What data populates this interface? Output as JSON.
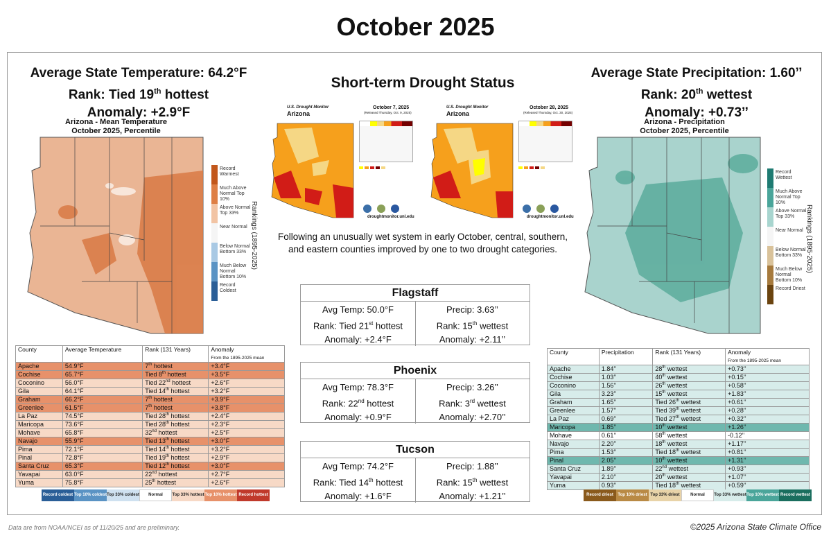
{
  "title": "October 2025",
  "temperature": {
    "line1": "Average State Temperature: 64.2°F",
    "rank_prefix": "Rank: Tied 19",
    "rank_sup": "th",
    "rank_suffix": " hottest",
    "anomaly": "Anomaly: +2.9°F",
    "map_title1": "Arizona - Mean Temperature",
    "map_title2": "October 2025, Percentile",
    "rankings_label": "Rankings (1895-2025)",
    "legend": [
      {
        "label": "Record Warmest",
        "color": "#c2571b"
      },
      {
        "label": "Much Above Normal Top 10%",
        "color": "#de7f45"
      },
      {
        "label": "Above Normal Top 33%",
        "color": "#f2c4a4"
      },
      {
        "label": "Near Normal",
        "color": "#f5f5f5"
      },
      {
        "label": "Below Normal Bottom 33%",
        "color": "#a9c9e4"
      },
      {
        "label": "Much Below Normal Bottom 10%",
        "color": "#5a93c4"
      },
      {
        "label": "Record Coldest",
        "color": "#2a5e97"
      }
    ],
    "table_headers": [
      "County",
      "Average Temperature",
      "Rank (131 Years)",
      "Anomaly",
      "From the 1895-2025 mean"
    ],
    "rows": [
      {
        "county": "Apache",
        "val": "54.9°F",
        "rank_pre": "7",
        "rank_sup": "th",
        "rank_post": " hottest",
        "anom": "+3.4°F",
        "color": "#e7916a"
      },
      {
        "county": "Cochise",
        "val": "65.7°F",
        "rank_pre": "Tied 8",
        "rank_sup": "th",
        "rank_post": " hottest",
        "anom": "+3.5°F",
        "color": "#e7916a"
      },
      {
        "county": "Coconino",
        "val": "56.0°F",
        "rank_pre": "Tied 22",
        "rank_sup": "nd",
        "rank_post": " hottest",
        "anom": "+2.6°F",
        "color": "#f7d9c6"
      },
      {
        "county": "Gila",
        "val": "64.1°F",
        "rank_pre": "Tied 14",
        "rank_sup": "th",
        "rank_post": " hottest",
        "anom": "+3.2°F",
        "color": "#f7d9c6"
      },
      {
        "county": "Graham",
        "val": "66.2°F",
        "rank_pre": "7",
        "rank_sup": "th",
        "rank_post": " hottest",
        "anom": "+3.9°F",
        "color": "#e7916a"
      },
      {
        "county": "Greenlee",
        "val": "61.5°F",
        "rank_pre": "7",
        "rank_sup": "th",
        "rank_post": " hottest",
        "anom": "+3.8°F",
        "color": "#e7916a"
      },
      {
        "county": "La Paz",
        "val": "74.5°F",
        "rank_pre": "Tied 28",
        "rank_sup": "th",
        "rank_post": " hottest",
        "anom": "+2.4°F",
        "color": "#f7d9c6"
      },
      {
        "county": "Maricopa",
        "val": "73.6°F",
        "rank_pre": "Tied 28",
        "rank_sup": "th",
        "rank_post": " hottest",
        "anom": "+2.3°F",
        "color": "#f7d9c6"
      },
      {
        "county": "Mohave",
        "val": "65.8°F",
        "rank_pre": "32",
        "rank_sup": "nd",
        "rank_post": " hottest",
        "anom": "+2.5°F",
        "color": "#f7d9c6"
      },
      {
        "county": "Navajo",
        "val": "55.9°F",
        "rank_pre": "Tied 13",
        "rank_sup": "th",
        "rank_post": " hottest",
        "anom": "+3.0°F",
        "color": "#e7916a"
      },
      {
        "county": "Pima",
        "val": "72.1°F",
        "rank_pre": "Tied 14",
        "rank_sup": "th",
        "rank_post": " hottest",
        "anom": "+3.2°F",
        "color": "#f7d9c6"
      },
      {
        "county": "Pinal",
        "val": "72.8°F",
        "rank_pre": "Tied 19",
        "rank_sup": "th",
        "rank_post": " hottest",
        "anom": "+2.9°F",
        "color": "#f7d9c6"
      },
      {
        "county": "Santa Cruz",
        "val": "65.3°F",
        "rank_pre": "Tied 12",
        "rank_sup": "th",
        "rank_post": " hottest",
        "anom": "+3.0°F",
        "color": "#e7916a"
      },
      {
        "county": "Yavapai",
        "val": "63.0°F",
        "rank_pre": "22",
        "rank_sup": "nd",
        "rank_post": " hottest",
        "anom": "+2.7°F",
        "color": "#f7d9c6"
      },
      {
        "county": "Yuma",
        "val": "75.8°F",
        "rank_pre": "25",
        "rank_sup": "th",
        "rank_post": " hottest",
        "anom": "+2.6°F",
        "color": "#f7d9c6"
      }
    ],
    "categories": [
      {
        "label": "Record coldest",
        "color": "#2a5e97",
        "text": "#fff"
      },
      {
        "label": "Top 10% coldest",
        "color": "#5a93c4",
        "text": "#fff"
      },
      {
        "label": "Top 33% coldest",
        "color": "#cfe1f0",
        "text": "#222"
      },
      {
        "label": "Normal",
        "color": "#ffffff",
        "text": "#222"
      },
      {
        "label": "Top 33% hottest",
        "color": "#f7d9c6",
        "text": "#222"
      },
      {
        "label": "Top 10% hottest",
        "color": "#e7916a",
        "text": "#fff"
      },
      {
        "label": "Record hottest",
        "color": "#c0392b",
        "text": "#fff"
      }
    ]
  },
  "drought": {
    "heading": "Short-term Drought Status",
    "map1": {
      "org": "U.S. Drought Monitor",
      "state": "Arizona",
      "date": "October 7, 2025",
      "sub": "(Released Thursday, Oct. 9, 2025)"
    },
    "map2": {
      "org": "U.S. Drought Monitor",
      "state": "Arizona",
      "date": "October 28, 2025",
      "sub": "(Released Thursday, Oct. 30, 2025)"
    },
    "site": "droughtmonitor.unl.edu",
    "summary": "Following an unusually wet system in early October, central, southern, and eastern counties improved by one to two drought categories."
  },
  "cities": [
    {
      "name": "Flagstaff",
      "temp": "Avg Temp: 50.0°F",
      "trank_pre": "Rank: Tied 21",
      "trank_sup": "st",
      "trank_post": " hottest",
      "tanom": "Anomaly: +2.4°F",
      "precip": "Precip: 3.63’’",
      "prank_pre": "Rank: 15",
      "prank_sup": "th",
      "prank_post": " wettest",
      "panom": "Anomaly: +2.11’’"
    },
    {
      "name": "Phoenix",
      "temp": "Avg Temp: 78.3°F",
      "trank_pre": "Rank: 22",
      "trank_sup": "nd",
      "trank_post": " hottest",
      "tanom": "Anomaly: +0.9°F",
      "precip": "Precip: 3.26’’",
      "prank_pre": "Rank: 3",
      "prank_sup": "rd",
      "prank_post": " wettest",
      "panom": "Anomaly: +2.70’’"
    },
    {
      "name": "Tucson",
      "temp": "Avg Temp: 74.2°F",
      "trank_pre": "Rank: Tied 14",
      "trank_sup": "th",
      "trank_post": " hottest",
      "tanom": "Anomaly: +1.6°F",
      "precip": "Precip: 1.88’’",
      "prank_pre": "Rank: 15",
      "prank_sup": "th",
      "prank_post": " wettest",
      "panom": "Anomaly: +1.21’’"
    }
  ],
  "precipitation": {
    "line1": "Average State Precipitation: 1.60’’",
    "rank_prefix": "Rank: 20",
    "rank_sup": "th",
    "rank_suffix": "  wettest",
    "anomaly": "Anomaly: +0.73’’",
    "map_title1": "Arizona - Precipitation",
    "map_title2": "October 2025, Percentile",
    "rankings_label": "Rankings (1895-2025)",
    "legend": [
      {
        "label": "Record Wettest",
        "color": "#1f7b72"
      },
      {
        "label": "Much Above Normal Top 10%",
        "color": "#4aa59a"
      },
      {
        "label": "Above Normal Top 33%",
        "color": "#a8d5cf"
      },
      {
        "label": "Near Normal",
        "color": "#f5f5f5"
      },
      {
        "label": "Below Normal Bottom 33%",
        "color": "#d9c29a"
      },
      {
        "label": "Much Below Normal Bottom 10%",
        "color": "#a67a3d"
      },
      {
        "label": "Record Driest",
        "color": "#6b4410"
      }
    ],
    "table_headers": [
      "County",
      "Precipitation",
      "Rank (131 Years)",
      "Anomaly",
      "From the 1895-2025 mean"
    ],
    "rows": [
      {
        "county": "Apache",
        "val": "1.84’’",
        "rank_pre": "28",
        "rank_sup": "th",
        "rank_post": " wettest",
        "anom": "+0.73’’",
        "color": "#d7ecea"
      },
      {
        "county": "Cochise",
        "val": "1.03’’",
        "rank_pre": "40",
        "rank_sup": "th",
        "rank_post": " wettest",
        "anom": "+0.15’’",
        "color": "#d7ecea"
      },
      {
        "county": "Coconino",
        "val": "1.56’’",
        "rank_pre": "26",
        "rank_sup": "th",
        "rank_post": " wettest",
        "anom": "+0.58’’",
        "color": "#d7ecea"
      },
      {
        "county": "Gila",
        "val": "3.23’’",
        "rank_pre": "15",
        "rank_sup": "th",
        "rank_post": " wettest",
        "anom": "+1.83’’",
        "color": "#d7ecea"
      },
      {
        "county": "Graham",
        "val": "1.65’’",
        "rank_pre": "Tied 26",
        "rank_sup": "th",
        "rank_post": " wettest",
        "anom": "+0.61’’",
        "color": "#d7ecea"
      },
      {
        "county": "Greenlee",
        "val": "1.57’’",
        "rank_pre": "Tied 39",
        "rank_sup": "th",
        "rank_post": " wettest",
        "anom": "+0.28’’",
        "color": "#d7ecea"
      },
      {
        "county": "La Paz",
        "val": "0.69’’",
        "rank_pre": "Tied 27",
        "rank_sup": "th",
        "rank_post": " wettest",
        "anom": "+0.32’’",
        "color": "#d7ecea"
      },
      {
        "county": "Maricopa",
        "val": "1.85’’",
        "rank_pre": "10",
        "rank_sup": "th",
        "rank_post": " wettest",
        "anom": "+1.26’’",
        "color": "#6fb8ae"
      },
      {
        "county": "Mohave",
        "val": "0.61’’",
        "rank_pre": "58",
        "rank_sup": "th",
        "rank_post": " wettest",
        "anom": "-0.12’’",
        "color": "#ffffff"
      },
      {
        "county": "Navajo",
        "val": "2.20’’",
        "rank_pre": "18",
        "rank_sup": "th",
        "rank_post": " wettest",
        "anom": "+1.17’’",
        "color": "#d7ecea"
      },
      {
        "county": "Pima",
        "val": "1.53’’",
        "rank_pre": "Tied 18",
        "rank_sup": "th",
        "rank_post": " wettest",
        "anom": "+0.81’’",
        "color": "#d7ecea"
      },
      {
        "county": "Pinal",
        "val": "2.05’’",
        "rank_pre": "10",
        "rank_sup": "th",
        "rank_post": " wettest",
        "anom": "+1.31’’",
        "color": "#6fb8ae"
      },
      {
        "county": "Santa Cruz",
        "val": "1.89’’",
        "rank_pre": "22",
        "rank_sup": "nd",
        "rank_post": " wettest",
        "anom": "+0.93’’",
        "color": "#d7ecea"
      },
      {
        "county": "Yavapai",
        "val": "2.10’’",
        "rank_pre": "20",
        "rank_sup": "th",
        "rank_post": " wettest",
        "anom": "+1.07’’",
        "color": "#d7ecea"
      },
      {
        "county": "Yuma",
        "val": "0.93’’",
        "rank_pre": "Tied 18",
        "rank_sup": "th",
        "rank_post": " wettest",
        "anom": "+0.59’’",
        "color": "#d7ecea"
      }
    ],
    "categories": [
      {
        "label": "Record driest",
        "color": "#8a5a1c",
        "text": "#fff"
      },
      {
        "label": "Top 10% driest",
        "color": "#b98a45",
        "text": "#fff"
      },
      {
        "label": "Top 33% driest",
        "color": "#e8d3a8",
        "text": "#222"
      },
      {
        "label": "Normal",
        "color": "#ffffff",
        "text": "#222"
      },
      {
        "label": "Top 33% wettest",
        "color": "#d7ecea",
        "text": "#222"
      },
      {
        "label": "Top 10% wettest",
        "color": "#4aa59a",
        "text": "#fff"
      },
      {
        "label": "Record wettest",
        "color": "#1a6e5e",
        "text": "#fff"
      }
    ]
  },
  "footer": {
    "left": "Data are from NOAA/NCEI as of 11/20/25 and are preliminary.",
    "right": "©2025 Arizona State Climate Office"
  }
}
